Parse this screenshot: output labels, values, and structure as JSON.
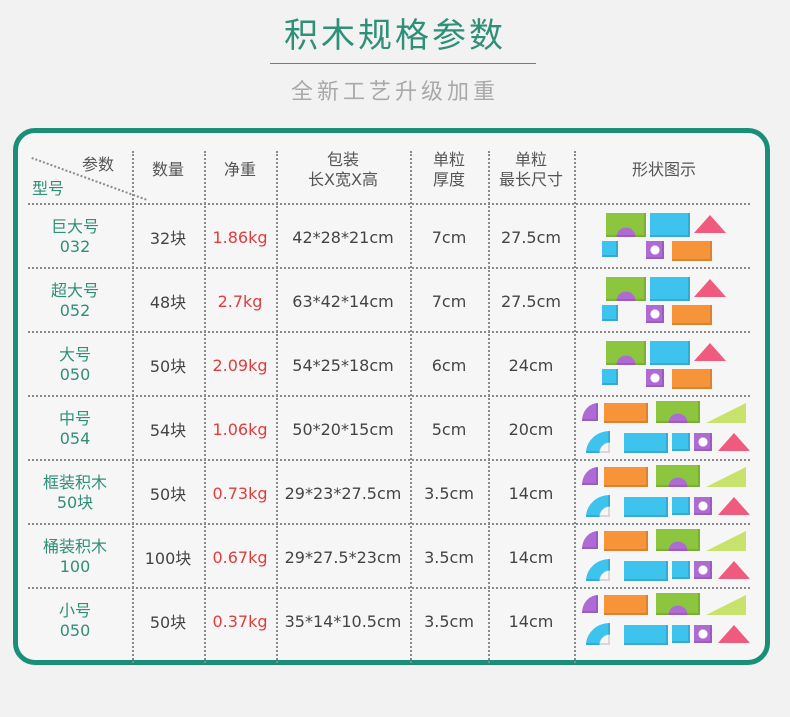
{
  "title": "积木规格参数",
  "subtitle": "全新工艺升级加重",
  "header": {
    "corner_top": "参数",
    "corner_bottom": "型号",
    "qty": "数量",
    "weight": "净重",
    "pack_line1": "包装",
    "pack_line2": "长X宽X高",
    "thick_line1": "单粒",
    "thick_line2": "厚度",
    "maxlen_line1": "单粒",
    "maxlen_line2": "最长尺寸",
    "shape": "形状图示"
  },
  "rows": [
    {
      "name": "巨大号",
      "code": "032",
      "qty": "32块",
      "weight": "1.86kg",
      "pack": "42*28*21cm",
      "thick": "7cm",
      "maxlen": "27.5cm",
      "shape_icon": "block-set-icon"
    },
    {
      "name": "超大号",
      "code": "052",
      "qty": "48块",
      "weight": "2.7kg",
      "pack": "63*42*14cm",
      "thick": "7cm",
      "maxlen": "27.5cm",
      "shape_icon": "block-set-icon"
    },
    {
      "name": "大号",
      "code": "050",
      "qty": "50块",
      "weight": "2.09kg",
      "pack": "54*25*18cm",
      "thick": "6cm",
      "maxlen": "24cm",
      "shape_icon": "block-set-icon"
    },
    {
      "name": "中号",
      "code": "054",
      "qty": "54块",
      "weight": "1.06kg",
      "pack": "50*20*15cm",
      "thick": "5cm",
      "maxlen": "20cm",
      "shape_icon": "block-set-icon"
    },
    {
      "name": "框装积木",
      "code": "50块",
      "qty": "50块",
      "weight": "0.73kg",
      "pack": "29*23*27.5cm",
      "thick": "3.5cm",
      "maxlen": "14cm",
      "shape_icon": "block-set-icon"
    },
    {
      "name": "桶装积木",
      "code": "100",
      "qty": "100块",
      "weight": "0.67kg",
      "pack": "29*27.5*23cm",
      "thick": "3.5cm",
      "maxlen": "14cm",
      "shape_icon": "block-set-icon"
    },
    {
      "name": "小号",
      "code": "050",
      "qty": "50块",
      "weight": "0.37kg",
      "pack": "35*14*10.5cm",
      "thick": "3.5cm",
      "maxlen": "14cm",
      "shape_icon": "block-set-icon"
    }
  ],
  "colors": {
    "accent": "#1a8f77",
    "title": "#2f8f79",
    "weight_text": "#e23c3c",
    "block_green": "#8cc63f",
    "block_blue": "#3ec3ee",
    "block_pink": "#f05a7e",
    "block_purple": "#b06ad6",
    "block_orange": "#f7943a",
    "block_lime": "#c8e26c"
  }
}
